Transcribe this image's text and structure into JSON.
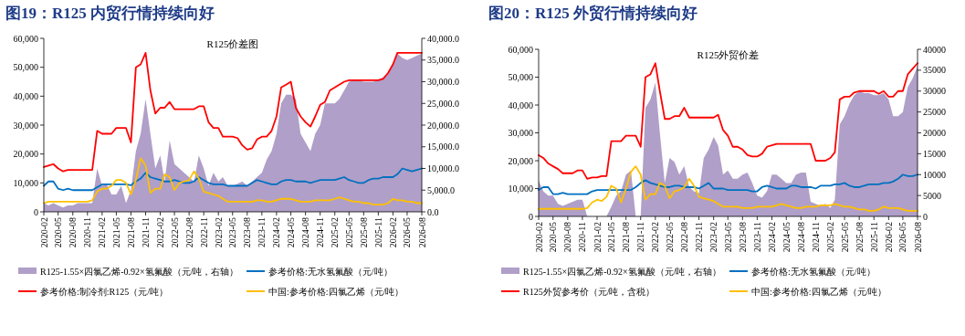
{
  "chart_data": [
    {
      "type": "line",
      "title": "图19：R125 内贸行情持续向好",
      "subtitle": "R125价差图",
      "x": [
        "2020-02",
        "2020-03",
        "2020-04",
        "2020-05",
        "2020-06",
        "2020-07",
        "2020-08",
        "2020-09",
        "2020-10",
        "2020-11",
        "2020-12",
        "2021-01",
        "2021-02",
        "2021-03",
        "2021-04",
        "2021-05",
        "2021-06",
        "2021-07",
        "2021-08",
        "2021-09",
        "2021-10",
        "2021-11",
        "2021-12",
        "2022-01",
        "2022-02",
        "2022-03",
        "2022-04",
        "2022-05",
        "2022-06",
        "2022-07",
        "2022-08",
        "2022-09",
        "2022-10",
        "2022-11",
        "2022-12",
        "2023-01",
        "2023-02",
        "2023-03",
        "2023-04",
        "2023-05",
        "2023-06",
        "2023-07",
        "2023-08",
        "2023-09",
        "2023-10",
        "2023-11",
        "2023-12",
        "2024-01",
        "2024-02",
        "2024-03",
        "2024-04",
        "2024-05",
        "2024-06",
        "2024-07",
        "2024-08",
        "2024-09",
        "2024-10",
        "2024-11",
        "2024-12",
        "2025-01",
        "2025-02",
        "2025-03",
        "2025-04",
        "2025-05",
        "2025-06",
        "2025-07",
        "2025-08",
        "2025-09",
        "2025-10",
        "2025-11",
        "2025-12",
        "2026-01",
        "2026-02",
        "2026-03",
        "2026-04",
        "2026-05",
        "2026-06",
        "2026-07",
        "2026-08"
      ],
      "xlim": [
        "2020-02",
        "2026-08"
      ],
      "xticks": [
        "2020-02",
        "2020-05",
        "2020-08",
        "2020-11",
        "2021-02",
        "2021-05",
        "2021-08",
        "2021-11",
        "2022-02",
        "2022-05",
        "2022-08",
        "2022-11",
        "2023-02",
        "2023-05",
        "2023-08",
        "2023-11",
        "2024-02",
        "2024-05",
        "2024-08",
        "2024-11",
        "2025-02",
        "2025-05",
        "2025-08",
        "2025-11",
        "2026-02",
        "2026-05",
        "2026-08"
      ],
      "ylim": [
        0,
        60000
      ],
      "yticks": [
        {
          "value": 0,
          "label": "0"
        },
        {
          "value": 10000,
          "label": "10,000"
        },
        {
          "value": 20000,
          "label": "20,000"
        },
        {
          "value": 30000,
          "label": "30,000"
        },
        {
          "value": 40000,
          "label": "40,000"
        },
        {
          "value": 50000,
          "label": "50,000"
        },
        {
          "value": 60000,
          "label": "60,000"
        }
      ],
      "y2lim": [
        0,
        40000
      ],
      "y2ticks": [
        {
          "value": 0,
          "label": "0.0"
        },
        {
          "value": 5000,
          "label": "5,000.0"
        },
        {
          "value": 10000,
          "label": "10,000.0"
        },
        {
          "value": 15000,
          "label": "15,000.0"
        },
        {
          "value": 20000,
          "label": "20,000.0"
        },
        {
          "value": 25000,
          "label": "25,000.0"
        },
        {
          "value": 30000,
          "label": "30,000.0"
        },
        {
          "value": 35000,
          "label": "35,000.0"
        },
        {
          "value": 40000,
          "label": "40,000.0"
        }
      ],
      "legend": "bottom",
      "series": [
        {
          "name": "R125-1.55×四氯乙烯-0.92×氢氟酸（元/吨，右轴）",
          "type": "area",
          "axis": "y2",
          "color": "#b09fc8",
          "values": [
            2000,
            1500,
            2000,
            1500,
            1000,
            1500,
            1500,
            2000,
            2000,
            2000,
            2000,
            10000,
            6000,
            6500,
            4000,
            4000,
            6000,
            2000,
            5000,
            14000,
            18000,
            26000,
            18000,
            10000,
            13000,
            7000,
            16500,
            11000,
            10000,
            9000,
            8000,
            7000,
            13000,
            10000,
            6000,
            9000,
            7000,
            8000,
            6000,
            6000,
            6500,
            7000,
            6000,
            7000,
            8000,
            9000,
            12000,
            14000,
            18000,
            25000,
            27000,
            27000,
            26000,
            18000,
            16000,
            14000,
            18000,
            20000,
            25000,
            25000,
            25000,
            26000,
            28000,
            30000,
            30500,
            30500,
            30000,
            30000,
            30000,
            30500,
            31000,
            32000,
            34000,
            36500,
            35500,
            35000,
            35500,
            36000,
            36500
          ]
        },
        {
          "name": "参考价格:无水氢氟酸（元/吨）",
          "type": "line",
          "color": "#0070c0",
          "values": [
            9000,
            10500,
            10500,
            8000,
            7500,
            8000,
            7500,
            7500,
            7500,
            7500,
            7500,
            8500,
            9500,
            9500,
            9500,
            9500,
            9500,
            9500,
            9200,
            10500,
            11500,
            13500,
            12000,
            11500,
            11000,
            10500,
            10500,
            11000,
            10500,
            10000,
            10000,
            10500,
            12000,
            11000,
            10000,
            9500,
            9500,
            9500,
            9000,
            9000,
            9000,
            9000,
            9000,
            10000,
            11000,
            10500,
            10000,
            9500,
            9500,
            10500,
            11000,
            11000,
            10500,
            10500,
            10500,
            10000,
            10500,
            11000,
            11000,
            11000,
            11000,
            11500,
            12000,
            11000,
            10500,
            10000,
            10000,
            11000,
            11500,
            11500,
            12000,
            12000,
            12000,
            13000,
            15000,
            14500,
            14000,
            14500,
            15000
          ]
        },
        {
          "name": "参考价格:制冷剂:R125（元/吨）",
          "type": "line",
          "color": "#ff0000",
          "values": [
            15500,
            16000,
            16500,
            15000,
            14000,
            14500,
            14500,
            14500,
            14500,
            14500,
            14500,
            28000,
            27000,
            27000,
            27000,
            29000,
            29000,
            29000,
            24000,
            50000,
            51000,
            55000,
            42000,
            34000,
            36000,
            36000,
            38000,
            35500,
            35500,
            35500,
            35500,
            35500,
            36500,
            36500,
            31000,
            29000,
            29000,
            26000,
            26000,
            26000,
            25500,
            23000,
            21500,
            22000,
            25000,
            26000,
            26000,
            28000,
            33000,
            43000,
            44000,
            45000,
            36000,
            33000,
            31000,
            29500,
            33000,
            37000,
            38000,
            42000,
            43000,
            44000,
            45000,
            45500,
            45500,
            45500,
            45500,
            45500,
            45500,
            45500,
            46000,
            48000,
            51000,
            55000,
            55000,
            55000,
            55000,
            55000,
            55000
          ]
        },
        {
          "name": "中国:参考价格:四氯乙烯（元/吨）",
          "type": "line",
          "color": "#ffc000",
          "values": [
            3000,
            3500,
            3500,
            3500,
            3500,
            3500,
            3500,
            3500,
            3500,
            3500,
            4000,
            7000,
            8000,
            8000,
            9000,
            11000,
            11000,
            10000,
            6000,
            11000,
            18500,
            16000,
            6500,
            8000,
            8000,
            13000,
            12000,
            7500,
            10000,
            10500,
            11000,
            14000,
            11500,
            7000,
            6500,
            6000,
            5500,
            4500,
            3500,
            3500,
            3500,
            3500,
            3500,
            3500,
            4000,
            4000,
            3500,
            3500,
            4000,
            4500,
            4500,
            4500,
            4000,
            3500,
            3500,
            3500,
            4000,
            4000,
            4000,
            4000,
            4500,
            5000,
            4500,
            4000,
            3500,
            3500,
            3000,
            3000,
            2500,
            2500,
            2500,
            3000,
            4500,
            4000,
            4000,
            3500,
            3500,
            3000,
            3000
          ]
        }
      ]
    },
    {
      "type": "line",
      "title": "图20：R125 外贸行情持续向好",
      "subtitle": "R125外贸价差",
      "x": [
        "2020-02",
        "2020-03",
        "2020-04",
        "2020-05",
        "2020-06",
        "2020-07",
        "2020-08",
        "2020-09",
        "2020-10",
        "2020-11",
        "2020-12",
        "2021-01",
        "2021-02",
        "2021-03",
        "2021-04",
        "2021-05",
        "2021-06",
        "2021-07",
        "2021-08",
        "2021-09",
        "2021-10",
        "2021-11",
        "2021-12",
        "2022-01",
        "2022-02",
        "2022-03",
        "2022-04",
        "2022-05",
        "2022-06",
        "2022-07",
        "2022-08",
        "2022-09",
        "2022-10",
        "2022-11",
        "2022-12",
        "2023-01",
        "2023-02",
        "2023-03",
        "2023-04",
        "2023-05",
        "2023-06",
        "2023-07",
        "2023-08",
        "2023-09",
        "2023-10",
        "2023-11",
        "2023-12",
        "2024-01",
        "2024-02",
        "2024-03",
        "2024-04",
        "2024-05",
        "2024-06",
        "2024-07",
        "2024-08",
        "2024-09",
        "2024-10",
        "2024-11",
        "2024-12",
        "2025-01",
        "2025-02",
        "2025-03",
        "2025-04",
        "2025-05",
        "2025-06",
        "2025-07",
        "2025-08",
        "2025-09",
        "2025-10",
        "2025-11",
        "2025-12",
        "2026-01",
        "2026-02",
        "2026-03",
        "2026-04",
        "2026-05",
        "2026-06",
        "2026-07",
        "2026-08"
      ],
      "xlim": [
        "2020-02",
        "2026-08"
      ],
      "xticks": [
        "2020-02",
        "2020-05",
        "2020-08",
        "2020-11",
        "2021-02",
        "2021-05",
        "2021-08",
        "2021-11",
        "2022-02",
        "2022-05",
        "2022-08",
        "2022-11",
        "2023-02",
        "2023-05",
        "2023-08",
        "2023-11",
        "2024-02",
        "2024-05",
        "2024-08",
        "2024-11",
        "2025-02",
        "2025-05",
        "2025-08",
        "2025-11",
        "2026-02",
        "2026-05",
        "2026-08"
      ],
      "ylim": [
        0,
        60000
      ],
      "yticks": [
        {
          "value": 0,
          "label": "0"
        },
        {
          "value": 10000,
          "label": "10,000"
        },
        {
          "value": 20000,
          "label": "20,000"
        },
        {
          "value": 30000,
          "label": "30,000"
        },
        {
          "value": 40000,
          "label": "40,000"
        },
        {
          "value": 50000,
          "label": "50,000"
        },
        {
          "value": 60000,
          "label": "60,000"
        }
      ],
      "y2lim": [
        0,
        40000
      ],
      "y2ticks": [
        0,
        5000,
        10000,
        15000,
        20000,
        25000,
        30000,
        35000,
        40000
      ],
      "legend": "bottom",
      "series": [
        {
          "name": "R125-1.55×四氯乙烯-0.92×氢氟酸（元/吨，右轴）",
          "type": "area",
          "axis": "y2",
          "color": "#b09fc8",
          "values": [
            8500,
            6000,
            5000,
            5000,
            3000,
            2500,
            3000,
            3500,
            4000,
            4000,
            0,
            0,
            0,
            0,
            0,
            2300,
            5000,
            6000,
            10000,
            11000,
            0,
            0,
            26000,
            28000,
            32000,
            20000,
            8000,
            14000,
            13000,
            10000,
            12000,
            7000,
            6000,
            5500,
            14000,
            16000,
            19000,
            17000,
            10000,
            11000,
            9000,
            9000,
            10000,
            10500,
            8000,
            5000,
            4500,
            6000,
            10000,
            10000,
            9000,
            8000,
            8000,
            10000,
            10500,
            10500,
            3500,
            3000,
            2500,
            3000,
            2000,
            4000,
            22000,
            24000,
            27000,
            29000,
            30000,
            29500,
            29500,
            29000,
            29000,
            29500,
            28000,
            24000,
            24000,
            25000,
            31000,
            33000,
            36000
          ]
        },
        {
          "name": "参考价格:无水氢氟酸（元/吨）",
          "type": "line",
          "color": "#0070c0",
          "values": [
            9500,
            10500,
            10500,
            8000,
            8000,
            8500,
            8000,
            8000,
            8000,
            8000,
            8000,
            9000,
            9500,
            9500,
            9500,
            9500,
            9500,
            9500,
            9500,
            9500,
            10500,
            12000,
            13000,
            12000,
            11500,
            11000,
            10500,
            10500,
            11000,
            11000,
            10500,
            10500,
            10500,
            10000,
            11000,
            12000,
            10000,
            10000,
            10000,
            9500,
            9500,
            9500,
            9500,
            9500,
            9000,
            9000,
            10500,
            11000,
            10500,
            10000,
            10000,
            10000,
            11000,
            11000,
            10500,
            10500,
            10500,
            10000,
            11000,
            11000,
            11000,
            11500,
            11500,
            12000,
            11000,
            10500,
            10500,
            11000,
            11500,
            11500,
            11500,
            12000,
            12000,
            12500,
            13500,
            15000,
            14500,
            14500,
            15000
          ]
        },
        {
          "name": "R125外贸参考价（元/吨，含税）",
          "type": "line",
          "color": "#ff0000",
          "values": [
            22000,
            21000,
            19000,
            18000,
            17000,
            15500,
            15500,
            15500,
            16500,
            16500,
            13500,
            14000,
            14000,
            14500,
            14500,
            27000,
            27000,
            27000,
            29000,
            29000,
            29000,
            25000,
            50000,
            51000,
            55000,
            45000,
            35000,
            35000,
            36000,
            36000,
            39000,
            35500,
            35500,
            35500,
            35500,
            35500,
            35500,
            36500,
            31000,
            29000,
            25000,
            25000,
            24000,
            22000,
            21500,
            21500,
            22500,
            25000,
            25500,
            26000,
            26000,
            26000,
            26000,
            26000,
            26000,
            26000,
            26000,
            20000,
            20000,
            20000,
            21000,
            23000,
            42000,
            43000,
            43000,
            44500,
            45000,
            45000,
            45000,
            45000,
            44000,
            45000,
            43000,
            43000,
            45000,
            45000,
            51000,
            53000,
            55000
          ]
        },
        {
          "name": "中国:参考价格:四氯乙烯（元/吨）",
          "type": "line",
          "color": "#ffc000",
          "values": [
            2700,
            2700,
            2700,
            2700,
            2700,
            2700,
            2700,
            2700,
            2700,
            2700,
            3000,
            5000,
            6000,
            5500,
            7000,
            11000,
            10000,
            5000,
            10000,
            16000,
            18000,
            15000,
            6000,
            8000,
            8000,
            12000,
            11000,
            6500,
            9000,
            9500,
            10500,
            13500,
            11000,
            7000,
            6500,
            6000,
            5500,
            4500,
            3500,
            3500,
            3500,
            3500,
            3000,
            3000,
            3000,
            3500,
            3500,
            3500,
            3500,
            4000,
            4500,
            4000,
            3500,
            3000,
            3000,
            3500,
            3500,
            3500,
            4000,
            4000,
            4000,
            4500,
            4000,
            3500,
            3500,
            3000,
            2500,
            2500,
            2000,
            2000,
            2500,
            3500,
            3000,
            3000,
            3000,
            2500,
            2000,
            2000,
            2000
          ]
        }
      ]
    }
  ]
}
